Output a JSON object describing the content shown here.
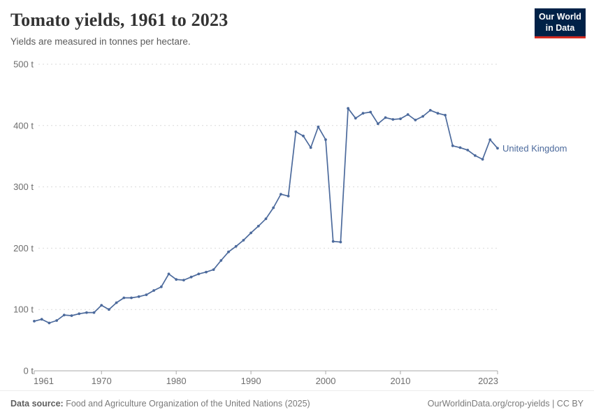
{
  "header": {
    "title": "Tomato yields, 1961 to 2023",
    "subtitle": "Yields are measured in tonnes per hectare."
  },
  "logo": {
    "line1": "Our World",
    "line2": "in Data",
    "bg_color": "#002147",
    "accent_color": "#d42b21"
  },
  "chart_data": {
    "type": "line",
    "title": "Tomato yields, 1961 to 2023",
    "xlabel": "",
    "ylabel": "tonnes per hectare",
    "xlim": [
      1961,
      2023
    ],
    "ylim": [
      0,
      500
    ],
    "grid": "horizontal-dashed",
    "legend_position": "end-of-line-label",
    "y_ticks": [
      0,
      100,
      200,
      300,
      400,
      500
    ],
    "y_tick_suffix": " t",
    "x_ticks": [
      1961,
      1970,
      1980,
      1990,
      2000,
      2010,
      2023
    ],
    "x": [
      1961,
      1962,
      1963,
      1964,
      1965,
      1966,
      1967,
      1968,
      1969,
      1970,
      1971,
      1972,
      1973,
      1974,
      1975,
      1976,
      1977,
      1978,
      1979,
      1980,
      1981,
      1982,
      1983,
      1984,
      1985,
      1986,
      1987,
      1988,
      1989,
      1990,
      1991,
      1992,
      1993,
      1994,
      1995,
      1996,
      1997,
      1998,
      1999,
      2000,
      2001,
      2002,
      2003,
      2004,
      2005,
      2006,
      2007,
      2008,
      2009,
      2010,
      2011,
      2012,
      2013,
      2014,
      2015,
      2016,
      2017,
      2018,
      2019,
      2020,
      2021,
      2022,
      2023
    ],
    "series": [
      {
        "name": "United Kingdom",
        "color": "#4c6a9c",
        "values": [
          81,
          84,
          78,
          82,
          91,
          90,
          93,
          95,
          95,
          107,
          100,
          111,
          119,
          119,
          121,
          124,
          131,
          137,
          158,
          149,
          148,
          153,
          158,
          161,
          165,
          180,
          194,
          203,
          213,
          225,
          236,
          248,
          266,
          288,
          285,
          390,
          383,
          364,
          398,
          377,
          211,
          210,
          428,
          412,
          420,
          422,
          403,
          413,
          410,
          411,
          418,
          409,
          415,
          425,
          420,
          417,
          367,
          364,
          360,
          351,
          345,
          377,
          363
        ]
      }
    ]
  },
  "axis_style": {
    "tick_label_color": "#6e6e6e",
    "gridline_color": "#dadada",
    "axis_line_color": "#a8a8a8"
  },
  "footer": {
    "datasource_label": "Data source:",
    "datasource_text": " Food and Agriculture Organization of the United Nations (2025)",
    "attribution": "OurWorldinData.org/crop-yields | CC BY"
  }
}
